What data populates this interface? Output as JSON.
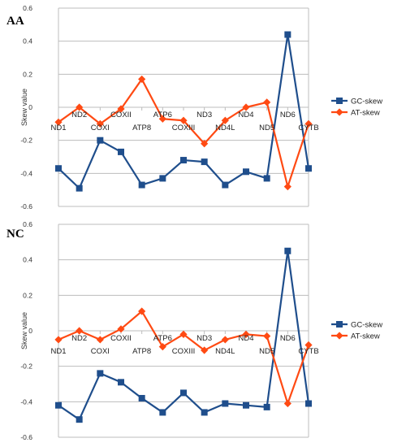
{
  "chart_data": [
    {
      "type": "line",
      "panel_label": "AA",
      "categories": [
        "ND1",
        "ND2",
        "COXI",
        "COXII",
        "ATP8",
        "ATP6",
        "COXIII",
        "ND3",
        "ND4L",
        "ND4",
        "ND5",
        "ND6",
        "CYTB"
      ],
      "category_labels": [
        "ND1",
        "ND2",
        "COXI",
        "COXII",
        "ATP8",
        "ATP6",
        "COXIII",
        "ND3",
        "ND4L",
        "ND4",
        "ND5",
        "ND6",
        "CYTB"
      ],
      "ylabel": "Skew value",
      "ylim": [
        -0.6,
        0.6
      ],
      "yticks": [
        "0.6",
        "0.4",
        "0.2",
        "0",
        "-0.2",
        "-0.4",
        "-0.6"
      ],
      "grid": true,
      "legend_position": "right",
      "series": [
        {
          "name": "GC-skew",
          "color": "#1f4e8c",
          "marker": "square",
          "values": [
            -0.37,
            -0.49,
            -0.2,
            -0.27,
            -0.47,
            -0.43,
            -0.32,
            -0.33,
            -0.47,
            -0.39,
            -0.43,
            0.44,
            -0.37
          ]
        },
        {
          "name": "AT-skew",
          "color": "#ff4a13",
          "marker": "diamond",
          "values": [
            -0.09,
            0.0,
            -0.1,
            -0.01,
            0.17,
            -0.07,
            -0.08,
            -0.22,
            -0.08,
            0.0,
            0.03,
            -0.48,
            -0.1
          ]
        }
      ]
    },
    {
      "type": "line",
      "panel_label": "NC",
      "categories": [
        "ND1",
        "ND2",
        "COXI",
        "COXII",
        "ATP8",
        "ATP6",
        "COXIII",
        "ND3",
        "ND4L",
        "ND4",
        "ND5",
        "ND6",
        "CYTB"
      ],
      "category_labels": [
        "ND1",
        "ND2",
        "COXI",
        "COXII",
        "ATP8",
        "ATP6",
        "COXIII",
        "ND3",
        "ND4L",
        "ND4",
        "ND5",
        "ND6",
        "CYTB"
      ],
      "ylabel": "Skew value",
      "ylim": [
        -0.6,
        0.6
      ],
      "yticks": [
        "0.6",
        "0.4",
        "0.2",
        "0",
        "-0.2",
        "-0.4",
        "-0.6"
      ],
      "grid": true,
      "legend_position": "right",
      "series": [
        {
          "name": "GC-skew",
          "color": "#1f4e8c",
          "marker": "square",
          "values": [
            -0.42,
            -0.5,
            -0.24,
            -0.29,
            -0.38,
            -0.46,
            -0.35,
            -0.46,
            -0.41,
            -0.42,
            -0.43,
            0.45,
            -0.41
          ]
        },
        {
          "name": "AT-skew",
          "color": "#ff4a13",
          "marker": "diamond",
          "values": [
            -0.05,
            0.0,
            -0.05,
            0.01,
            0.11,
            -0.09,
            -0.02,
            -0.11,
            -0.05,
            -0.02,
            -0.03,
            -0.41,
            -0.08
          ]
        }
      ]
    }
  ]
}
